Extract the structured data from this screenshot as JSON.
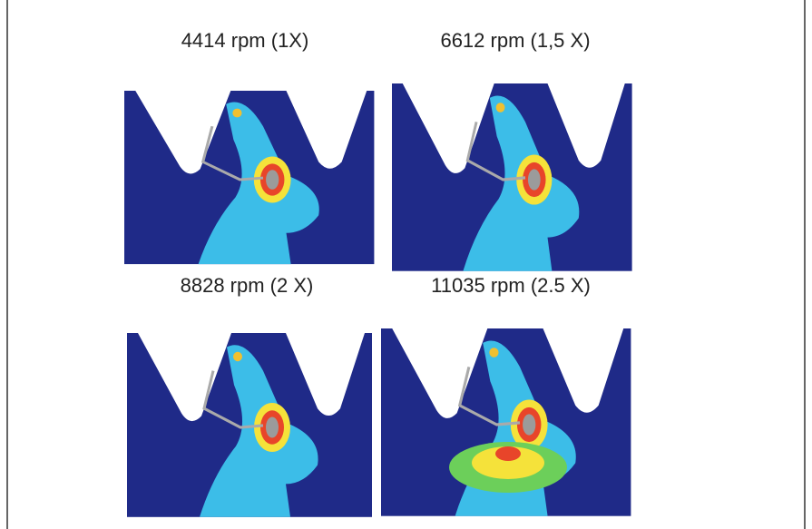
{
  "panels": [
    {
      "label": "4414 rpm (1X)"
    },
    {
      "label": "6612 rpm (1,5 X)"
    },
    {
      "label": "8828 rpm (2 X)"
    },
    {
      "label": "11035 rpm (2.5 X)"
    }
  ]
}
